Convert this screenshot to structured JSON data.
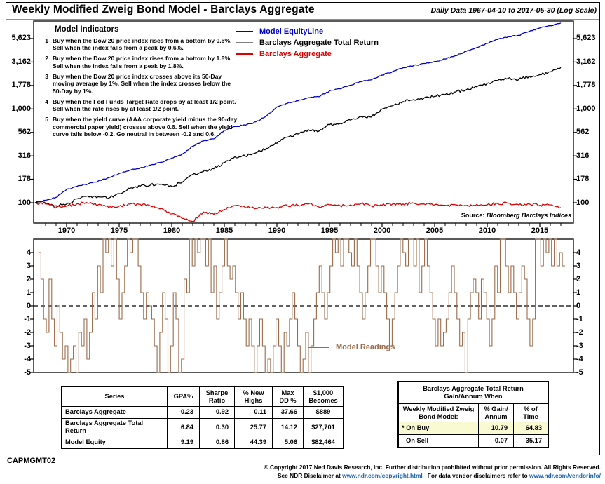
{
  "title": "Weekly Modified Zweig Bond Model - Barclays Aggregate",
  "subtitle": "Daily Data 1967-04-10 to 2017-05-30 (Log Scale)",
  "indicators": {
    "title": "Model Indicators",
    "items": [
      "Buy when the Dow 20 price index rises from a bottom by 0.6%. Sell when the index falls from a peak by 0.6%.",
      "Buy when the Dow 20 price index rises from a bottom by 1.8%. Sell when the index falls from a peak by 1.8%.",
      "Buy when the Dow 20 price index crosses above its 50-Day moving average by 1%. Sell when the index crosses below the 50-Day by 1%.",
      "Buy when the Fed Funds Target Rate drops by at least 1/2 point. Sell when the rate rises by at least 1/2 point.",
      "Buy when the yield curve (AAA corporate yield minus the 90-day commercial paper yield) crosses above 0.6. Sell when the yield curve falls below -0.2. Go neutral in between -0.2 and 0.6."
    ]
  },
  "legend": {
    "items": [
      {
        "label": "Model EquityLine",
        "color": "#0000CC",
        "swatch": "#0000CC"
      },
      {
        "label": "Barclays Aggregate Total Return",
        "color": "#000000",
        "swatch": "#808080"
      },
      {
        "label": "Barclays Aggregate",
        "color": "#DD0000",
        "swatch": "#DD0000"
      }
    ]
  },
  "source": {
    "prefix": "Source:",
    "text": "Bloomberg Barclays Indices"
  },
  "chart_data": {
    "type": "line",
    "main": {
      "scale": "log",
      "x_range": [
        1967.2,
        2017.4
      ],
      "y_tick_labels": [
        "5,623",
        "3,162",
        "1,778",
        "1,000",
        "562",
        "316",
        "178",
        "100"
      ],
      "y_tick_values": [
        5623,
        3162,
        1778,
        1000,
        562,
        316,
        178,
        100
      ],
      "x_tick_labels": [
        1970,
        1975,
        1980,
        1985,
        1990,
        1995,
        2000,
        2005,
        2010,
        2015
      ],
      "series": [
        {
          "name": "Model EquityLine",
          "color": "#0000CC",
          "start_year": 1967,
          "step": 1,
          "values": [
            100,
            106,
            114,
            139,
            150,
            158,
            170,
            185,
            205,
            222,
            235,
            252,
            270,
            300,
            330,
            400,
            455,
            480,
            590,
            650,
            670,
            730,
            840,
            1050,
            1150,
            1220,
            1320,
            1350,
            1550,
            1640,
            1790,
            1950,
            2050,
            2300,
            2500,
            2750,
            2900,
            3050,
            3200,
            3400,
            3700,
            4100,
            4500,
            5000,
            5500,
            5900,
            6100,
            6700,
            7290,
            7700,
            8246
          ]
        },
        {
          "name": "Barclays Aggregate Total Return",
          "color": "#000000",
          "start_year": 1967,
          "step": 1,
          "values": [
            100,
            99,
            93,
            97,
            110,
            118,
            116,
            112,
            125,
            142,
            150,
            155,
            158,
            150,
            165,
            200,
            215,
            230,
            267,
            310,
            315,
            340,
            380,
            430,
            500,
            540,
            600,
            580,
            680,
            700,
            760,
            830,
            820,
            1000,
            1080,
            1200,
            1260,
            1310,
            1360,
            1420,
            1520,
            1600,
            1720,
            1870,
            2000,
            2120,
            2060,
            2230,
            2320,
            2480,
            2770
          ]
        },
        {
          "name": "Barclays Aggregate",
          "color": "#DD0000",
          "start_year": 1967,
          "step": 1,
          "values": [
            100,
            97,
            89,
            92,
            98,
            99,
            95,
            89,
            92,
            97,
            96,
            92,
            87,
            76,
            68,
            63,
            80,
            75,
            85,
            93,
            89,
            87,
            88,
            89,
            93,
            94,
            97,
            90,
            95,
            93,
            95,
            98,
            92,
            94,
            97,
            97,
            99,
            97,
            95,
            94,
            95,
            93,
            96,
            95,
            98,
            99,
            95,
            97,
            94,
            95,
            89
          ]
        }
      ]
    },
    "lower": {
      "series_name": "Model Readings",
      "color": "#9B6B4B",
      "y_ticks": [
        4,
        3,
        2,
        1,
        0,
        -1,
        -2,
        -3,
        -4,
        -5
      ],
      "y_range": [
        -5,
        5
      ],
      "readings": {
        "start_year": 1967.3,
        "end_year": 2017.4,
        "values": [
          4,
          2,
          -1,
          -2,
          2,
          -1,
          -3,
          0,
          -2,
          -4,
          -3,
          -5,
          -4,
          -3,
          -5,
          -2,
          -3,
          -1,
          -4,
          -2,
          1,
          -1,
          3,
          1,
          5,
          4,
          5,
          3,
          5,
          2,
          -1,
          1,
          3,
          5,
          4,
          5,
          5,
          3,
          1,
          -1,
          1,
          0,
          -1,
          -3,
          -5,
          -2,
          1,
          -1,
          -5,
          -3,
          1,
          -1,
          -5,
          -4,
          2,
          1,
          5,
          3,
          5,
          4,
          5,
          5,
          3,
          5,
          1,
          3,
          -1,
          1,
          3,
          5,
          3,
          2,
          3,
          1,
          -1,
          1,
          -1,
          -3,
          -1,
          -3,
          -5,
          -3,
          -1,
          -3,
          -5,
          -4,
          -5,
          -3,
          -1,
          -3,
          -5,
          -2,
          -3,
          -1,
          1,
          -1,
          -3,
          -5,
          -4,
          -2,
          -5,
          -3,
          -1,
          1,
          3,
          1,
          -1,
          1,
          3,
          5,
          4,
          5,
          3,
          5,
          5,
          4,
          3,
          5,
          3,
          1,
          -1,
          1,
          3,
          5,
          5,
          3,
          1,
          3,
          1,
          -1,
          -3,
          -1,
          1,
          3,
          5,
          4,
          3,
          5,
          5,
          3,
          5,
          1,
          3,
          5,
          3,
          1,
          -1,
          -3,
          -1,
          -3,
          -2,
          -1,
          1,
          3,
          1,
          -1,
          -3,
          -2,
          -5,
          -1,
          1,
          2,
          1,
          -1,
          2,
          1,
          -1,
          -3,
          -1,
          3,
          1,
          5,
          5,
          3,
          1,
          3,
          1,
          -1,
          1,
          3,
          2,
          -1,
          -3,
          -1,
          5,
          5,
          3,
          5,
          4,
          5,
          3,
          5,
          3,
          4,
          3
        ]
      }
    }
  },
  "left_table": {
    "headers": [
      "Series",
      "GPA%",
      "Sharpe\nRatio",
      "% New\nHighs",
      "Max\nDD %",
      "$1,000\nBecomes"
    ],
    "rows": [
      [
        "Barclays Aggregate",
        "-0.23",
        "-0.92",
        "0.11",
        "37.66",
        "$889"
      ],
      [
        "Barclays Aggregate Total Return",
        "6.84",
        "0.30",
        "25.77",
        "14.12",
        "$27,701"
      ],
      [
        "Model Equity",
        "9.19",
        "0.86",
        "44.39",
        "5.06",
        "$82,464"
      ]
    ]
  },
  "right_table": {
    "title": "Barclays Aggregate Total Return\nGain/Annum When",
    "headers": [
      "Weekly Modified Zweig\nBond Model:",
      "% Gain/\nAnnum",
      "% of\nTime"
    ],
    "rows": [
      {
        "label": "* On Buy",
        "gain": "10.79",
        "time": "64.83",
        "highlight": true
      },
      {
        "label": "On Sell",
        "gain": "-0.07",
        "time": "35.17",
        "highlight": false
      }
    ]
  },
  "footer": {
    "chart_id": "CAPMGMT02",
    "copyright": "© Copyright 2017 Ned Davis Research, Inc. Further distribution prohibited without prior permission. All Rights Reserved.",
    "disclaimer_prefix": "See NDR Disclaimer at ",
    "copyright_url": "www.ndr.com/copyright.html",
    "vendor_prefix": "   For data vendor disclaimers refer to ",
    "vendor_url": "www.ndr.com/vendorinfo/"
  },
  "colors": {
    "equity_line": "#0000CC",
    "total_return_line": "#000000",
    "aggregate_line": "#DD0000",
    "readings_line": "#9B6B4B",
    "highlight_row": "#FAFAD2",
    "link": "#1B62B5"
  }
}
